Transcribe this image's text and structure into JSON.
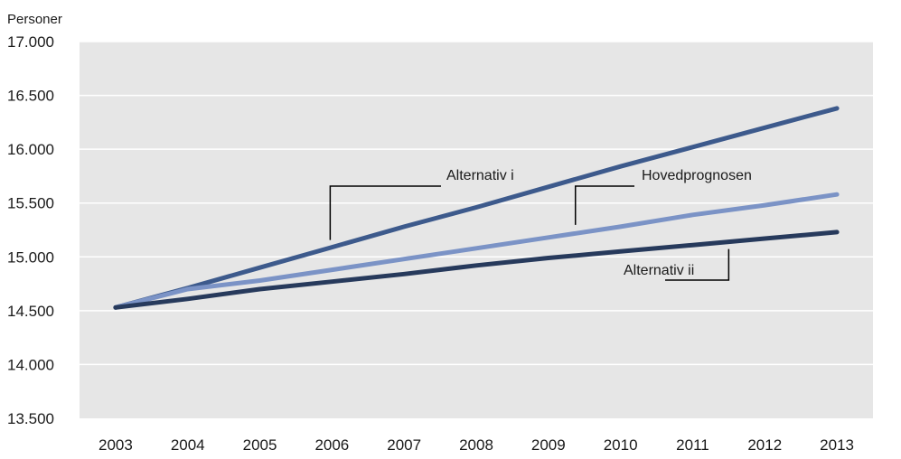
{
  "chart_data": {
    "type": "line",
    "title": "",
    "xlabel": "",
    "ylabel": "Personer",
    "x": [
      "2003",
      "2004",
      "2005",
      "2006",
      "2007",
      "2008",
      "2009",
      "2010",
      "2011",
      "2012",
      "2013"
    ],
    "ylim": [
      13500,
      17000
    ],
    "y_ticks": [
      13500,
      14000,
      14500,
      15000,
      15500,
      16000,
      16500,
      17000
    ],
    "y_tick_labels": [
      "13.500",
      "14.000",
      "14.500",
      "15.000",
      "15.500",
      "16.000",
      "16.500",
      "17.000"
    ],
    "grid": true,
    "legend": "none",
    "colors": {
      "plot_background": "#e6e6e6",
      "gridline": "#ffffff",
      "annotation_line": "#000000"
    },
    "series": [
      {
        "name": "Alternativ i",
        "color": "#3d5a8c",
        "values": [
          14530,
          14710,
          14900,
          15090,
          15280,
          15460,
          15650,
          15840,
          16020,
          16200,
          16380
        ]
      },
      {
        "name": "Hovedprognosen",
        "color": "#7b93c6",
        "values": [
          14530,
          14700,
          14780,
          14880,
          14980,
          15080,
          15180,
          15280,
          15390,
          15480,
          15580
        ]
      },
      {
        "name": "Alternativ ii",
        "color": "#273a5c",
        "values": [
          14530,
          14610,
          14700,
          14770,
          14840,
          14920,
          14990,
          15050,
          15110,
          15170,
          15230
        ]
      }
    ],
    "annotations": [
      {
        "series": 0,
        "text": "Alternativ i"
      },
      {
        "series": 1,
        "text": "Hovedprognosen"
      },
      {
        "series": 2,
        "text": "Alternativ ii"
      }
    ]
  }
}
